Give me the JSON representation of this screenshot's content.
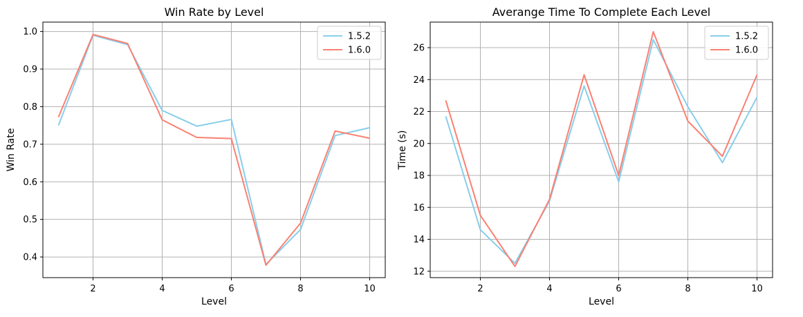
{
  "chart_data": [
    {
      "type": "line",
      "title": "Win Rate by Level",
      "xlabel": "Level",
      "ylabel": "Win Rate",
      "x": [
        1,
        2,
        3,
        4,
        5,
        6,
        7,
        8,
        9,
        10
      ],
      "xlim": [
        0.55,
        10.45
      ],
      "ylim": [
        0.345,
        1.025
      ],
      "xticks": [
        2,
        4,
        6,
        8,
        10
      ],
      "xtick_labels": [
        "2",
        "4",
        "6",
        "8",
        "10"
      ],
      "yticks": [
        0.4,
        0.5,
        0.6,
        0.7,
        0.8,
        0.9,
        1.0
      ],
      "ytick_labels": [
        "0.4",
        "0.5",
        "0.6",
        "0.7",
        "0.8",
        "0.9",
        "1.0"
      ],
      "grid": true,
      "legend": "upper-right",
      "series": [
        {
          "name": "1.5.2",
          "color": "#87ceeb",
          "values": [
            0.75,
            0.99,
            0.965,
            0.79,
            0.748,
            0.766,
            0.38,
            0.473,
            0.723,
            0.744
          ]
        },
        {
          "name": "1.6.0",
          "color": "#fa8072",
          "values": [
            0.772,
            0.992,
            0.968,
            0.765,
            0.718,
            0.715,
            0.378,
            0.49,
            0.735,
            0.716
          ]
        }
      ]
    },
    {
      "type": "line",
      "title": "Averange Time To Complete Each Level",
      "xlabel": "Level",
      "ylabel": "Time (s)",
      "x": [
        1,
        2,
        3,
        4,
        5,
        6,
        7,
        8,
        9,
        10
      ],
      "xlim": [
        0.55,
        10.45
      ],
      "ylim": [
        11.6,
        27.6
      ],
      "xticks": [
        2,
        4,
        6,
        8,
        10
      ],
      "xtick_labels": [
        "2",
        "4",
        "6",
        "8",
        "10"
      ],
      "yticks": [
        12,
        14,
        16,
        18,
        20,
        22,
        24,
        26
      ],
      "ytick_labels": [
        "12",
        "14",
        "16",
        "18",
        "20",
        "22",
        "24",
        "26"
      ],
      "grid": true,
      "legend": "upper-right",
      "series": [
        {
          "name": "1.5.2",
          "color": "#87ceeb",
          "values": [
            21.7,
            14.6,
            12.5,
            16.4,
            23.6,
            17.6,
            26.5,
            22.3,
            18.8,
            22.9
          ]
        },
        {
          "name": "1.6.0",
          "color": "#fa8072",
          "values": [
            22.7,
            15.5,
            12.3,
            16.5,
            24.3,
            18.0,
            27.0,
            21.4,
            19.2,
            24.3
          ]
        }
      ]
    }
  ]
}
